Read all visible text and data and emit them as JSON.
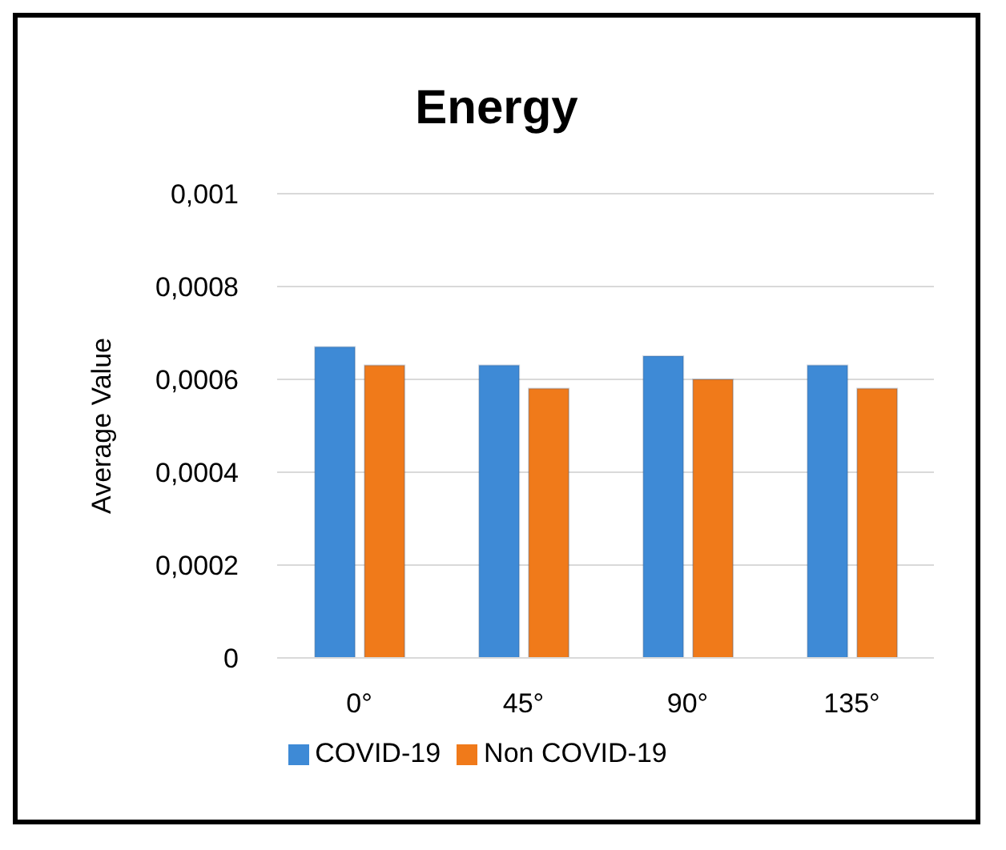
{
  "chart_data": {
    "type": "bar",
    "title": "Energy",
    "ylabel": "Average Value",
    "categories": [
      "0°",
      "45°",
      "90°",
      "135°"
    ],
    "series": [
      {
        "name": "COVID-19",
        "color": "#3e8ad6",
        "values": [
          0.00067,
          0.00063,
          0.00065,
          0.00063
        ]
      },
      {
        "name": "Non COVID-19",
        "color": "#f07a1a",
        "values": [
          0.00063,
          0.00058,
          0.0006,
          0.00058
        ]
      }
    ],
    "ylim": [
      0,
      0.001
    ],
    "yticks": [
      {
        "value": 0,
        "label": "0"
      },
      {
        "value": 0.0002,
        "label": "0,0002"
      },
      {
        "value": 0.0004,
        "label": "0,0004"
      },
      {
        "value": 0.0006,
        "label": "0,0006"
      },
      {
        "value": 0.0008,
        "label": "0,0008"
      },
      {
        "value": 0.001,
        "label": "0,001"
      }
    ],
    "grid": "y",
    "legend": "bottom"
  }
}
